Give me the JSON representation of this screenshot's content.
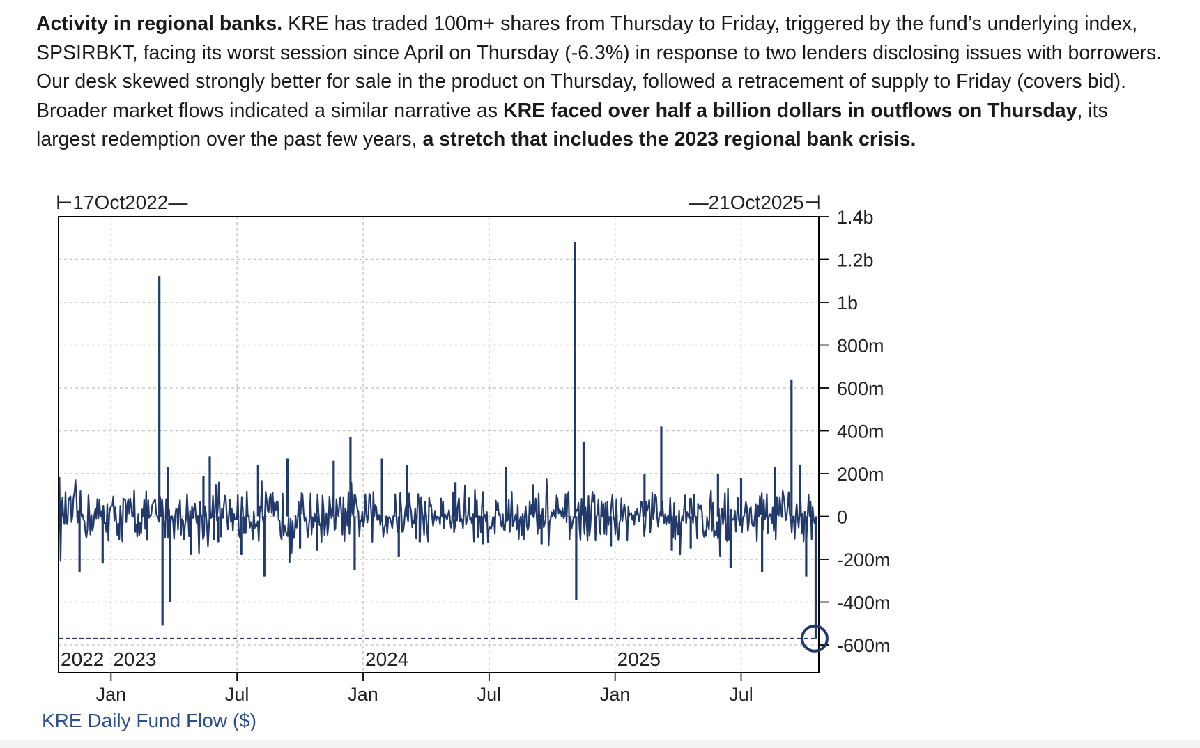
{
  "paragraph": {
    "p1_bold": "Activity in regional banks.",
    "p2": " KRE has traded 100m+ shares from Thursday to Friday, triggered by the fund’s underlying index, SPSIRBKT, facing its worst session since April on Thursday (-6.3%) in response to two lenders disclosing issues with borrowers. Our desk skewed strongly better for sale in the product on Thursday, followed a retracement of supply to Friday (covers bid). Broader market flows indicated a similar narrative as ",
    "p3_bold": "KRE faced over half a billion dollars in outflows on Thursday",
    "p4": ", its largest redemption over the past few years, ",
    "p5_bold": "a stretch that includes the 2023 regional bank crisis."
  },
  "chart_data": {
    "type": "bar",
    "title": "",
    "series_label": "KRE Daily Fund Flow ($)",
    "start_label": "⊢17Oct2022—",
    "end_label": "—21Oct2025⊣",
    "ylim": [
      -730000000,
      1400000000
    ],
    "ytick_values": [
      1400000000,
      1200000000,
      1000000000,
      800000000,
      600000000,
      400000000,
      200000000,
      0,
      -200000000,
      -400000000,
      -600000000
    ],
    "ytick_labels": [
      "1.4b",
      "1.2b",
      "1b",
      "800m",
      "600m",
      "400m",
      "200m",
      "0",
      "-200m",
      "-400m",
      "-600m"
    ],
    "x_range_months": [
      0,
      36.2
    ],
    "gridline_months": [
      2.5,
      8.5,
      14.5,
      20.5,
      26.5,
      32.5
    ],
    "month_tick_labels": [
      {
        "m": 2.5,
        "label": "Jan"
      },
      {
        "m": 8.5,
        "label": "Jul"
      },
      {
        "m": 14.5,
        "label": "Jan"
      },
      {
        "m": 20.5,
        "label": "Jul"
      },
      {
        "m": 26.5,
        "label": "Jan"
      },
      {
        "m": 32.5,
        "label": "Jul"
      }
    ],
    "year_labels": [
      {
        "m": 0.1,
        "label": "2022"
      },
      {
        "m": 2.6,
        "label": "2023"
      },
      {
        "m": 14.6,
        "label": "2024"
      },
      {
        "m": 26.6,
        "label": "2025"
      }
    ],
    "reference_line": -570000000,
    "highlight": {
      "m": 36.1,
      "value": -570000000
    },
    "spikes": [
      {
        "m": 0.2,
        "value": 30000000
      },
      {
        "m": 1.0,
        "value": -260000000
      },
      {
        "m": 2.1,
        "value": -220000000
      },
      {
        "m": 4.8,
        "value": 1120000000
      },
      {
        "m": 4.95,
        "value": -510000000
      },
      {
        "m": 5.2,
        "value": 230000000
      },
      {
        "m": 5.3,
        "value": -400000000
      },
      {
        "m": 6.3,
        "value": -180000000
      },
      {
        "m": 6.9,
        "value": 190000000
      },
      {
        "m": 7.2,
        "value": 280000000
      },
      {
        "m": 7.6,
        "value": -120000000
      },
      {
        "m": 8.7,
        "value": -180000000
      },
      {
        "m": 9.5,
        "value": 240000000
      },
      {
        "m": 9.8,
        "value": -280000000
      },
      {
        "m": 10.9,
        "value": 270000000
      },
      {
        "m": 11.5,
        "value": -150000000
      },
      {
        "m": 12.3,
        "value": -160000000
      },
      {
        "m": 13.1,
        "value": 260000000
      },
      {
        "m": 13.9,
        "value": 370000000
      },
      {
        "m": 14.1,
        "value": -250000000
      },
      {
        "m": 15.4,
        "value": 270000000
      },
      {
        "m": 16.2,
        "value": -190000000
      },
      {
        "m": 16.6,
        "value": 240000000
      },
      {
        "m": 17.2,
        "value": -120000000
      },
      {
        "m": 18.9,
        "value": 160000000
      },
      {
        "m": 20.2,
        "value": -130000000
      },
      {
        "m": 21.3,
        "value": 230000000
      },
      {
        "m": 22.6,
        "value": 150000000
      },
      {
        "m": 23.0,
        "value": -130000000
      },
      {
        "m": 24.6,
        "value": 1280000000
      },
      {
        "m": 24.65,
        "value": -390000000
      },
      {
        "m": 25.0,
        "value": 350000000
      },
      {
        "m": 26.3,
        "value": -140000000
      },
      {
        "m": 27.9,
        "value": 200000000
      },
      {
        "m": 28.7,
        "value": 420000000
      },
      {
        "m": 29.2,
        "value": -160000000
      },
      {
        "m": 30.1,
        "value": -150000000
      },
      {
        "m": 31.4,
        "value": 200000000
      },
      {
        "m": 32.0,
        "value": -240000000
      },
      {
        "m": 32.5,
        "value": 180000000
      },
      {
        "m": 33.5,
        "value": -260000000
      },
      {
        "m": 34.1,
        "value": 230000000
      },
      {
        "m": 34.9,
        "value": 640000000
      },
      {
        "m": 35.3,
        "value": 240000000
      },
      {
        "m": 35.6,
        "value": -280000000
      },
      {
        "m": 36.05,
        "value": -570000000
      }
    ]
  }
}
